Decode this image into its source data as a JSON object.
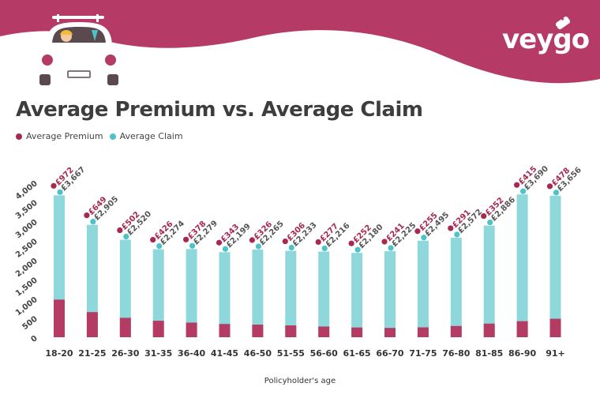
{
  "brand": {
    "logo_text": "veygo"
  },
  "colors": {
    "banner": "#b63a66",
    "premium": "#a8294f",
    "claim": "#4cc3c8",
    "claim_bar": "#8ed8dc",
    "premium_bar": "#b43b63",
    "text": "#3d3d3d"
  },
  "chart_data": {
    "type": "bar",
    "title": "Average Premium vs. Average Claim",
    "xlabel": "Policyholder's age",
    "ylabel": "",
    "ylim": [
      0,
      4000
    ],
    "yticks": [
      "0",
      "500",
      "1,000",
      "1,500",
      "2,000",
      "2,500",
      "3,000",
      "3,500",
      "4,000"
    ],
    "ytick_values": [
      0,
      500,
      1000,
      1500,
      2000,
      2500,
      3000,
      3500,
      4000
    ],
    "legend_position": "top-left",
    "grid": false,
    "categories": [
      "18-20",
      "21-25",
      "26-30",
      "31-35",
      "36-40",
      "41-45",
      "46-50",
      "51-55",
      "56-60",
      "61-65",
      "66-70",
      "71-75",
      "76-80",
      "81-85",
      "86-90",
      "91+"
    ],
    "series": [
      {
        "name": "Average Premium",
        "values": [
          972,
          649,
          502,
          426,
          378,
          343,
          326,
          306,
          277,
          252,
          241,
          255,
          291,
          352,
          415,
          478
        ],
        "labels": [
          "£972",
          "£649",
          "£502",
          "£426",
          "£378",
          "£343",
          "£326",
          "£306",
          "£277",
          "£252",
          "£241",
          "£255",
          "£291",
          "£352",
          "£415",
          "£478"
        ]
      },
      {
        "name": "Average Claim",
        "values": [
          3667,
          2905,
          2520,
          2274,
          2279,
          2199,
          2265,
          2233,
          2216,
          2180,
          2225,
          2495,
          2572,
          2886,
          3690,
          3656
        ],
        "labels": [
          "£3,667",
          "£2,905",
          "£2,520",
          "£2,274",
          "£2,279",
          "£2,199",
          "£2,265",
          "£2,233",
          "£2,216",
          "£2,180",
          "£2,225",
          "£2,495",
          "£2,572",
          "£2,886",
          "£3,690",
          "£3,656"
        ]
      }
    ]
  }
}
